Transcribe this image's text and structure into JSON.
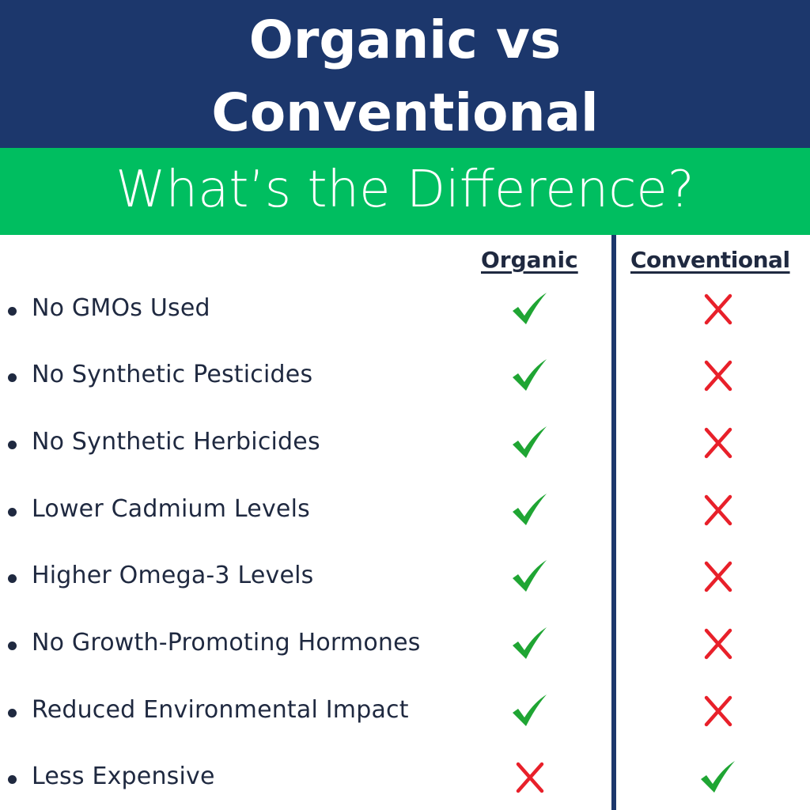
{
  "header": {
    "title_line1": "Organic vs",
    "title_line2": "Conventional",
    "subtitle": "What’s the Difference?"
  },
  "columns": {
    "organic": "Organic",
    "conventional": "Conventional"
  },
  "colors": {
    "navy": "#1c376c",
    "green_band": "#00be60",
    "check": "#1fa533",
    "cross": "#e8202a",
    "text": "#1f2940"
  },
  "rows": [
    {
      "label": "No GMOs Used",
      "organic": "check-icon",
      "conventional": "cross-icon"
    },
    {
      "label": "No Synthetic Pesticides",
      "organic": "check-icon",
      "conventional": "cross-icon"
    },
    {
      "label": "No Synthetic Herbicides",
      "organic": "check-icon",
      "conventional": "cross-icon"
    },
    {
      "label": "Lower Cadmium Levels",
      "organic": "check-icon",
      "conventional": "cross-icon"
    },
    {
      "label": "Higher Omega-3 Levels",
      "organic": "check-icon",
      "conventional": "cross-icon"
    },
    {
      "label": "No Growth-Promoting Hormones",
      "organic": "check-icon",
      "conventional": "cross-icon"
    },
    {
      "label": "Reduced Environmental Impact",
      "organic": "check-icon",
      "conventional": "cross-icon"
    },
    {
      "label": "Less Expensive",
      "organic": "cross-icon",
      "conventional": "check-icon"
    }
  ]
}
